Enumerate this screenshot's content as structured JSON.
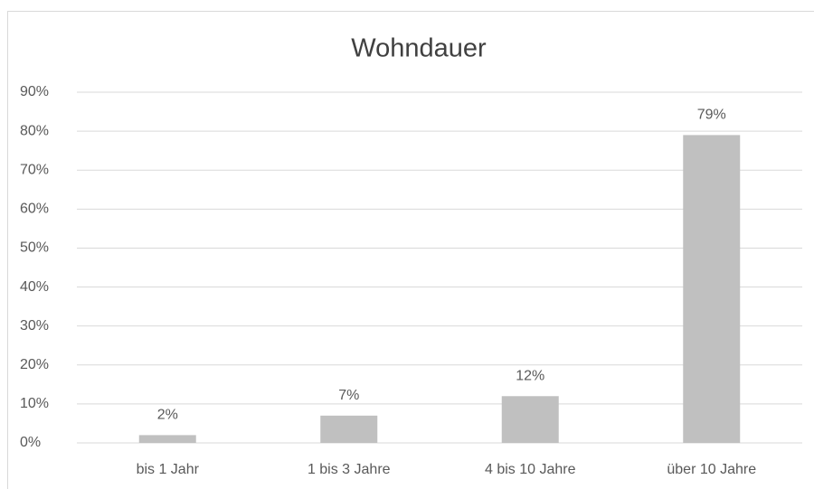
{
  "chart_data": {
    "type": "bar",
    "title": "Wohndauer",
    "categories": [
      "bis 1 Jahr",
      "1 bis 3 Jahre",
      "4 bis 10 Jahre",
      "über 10 Jahre"
    ],
    "values": [
      2,
      7,
      12,
      79
    ],
    "value_labels": [
      "2%",
      "7%",
      "12%",
      "79%"
    ],
    "color": "#c0c0c0",
    "ylim": [
      0,
      90
    ],
    "yticks": [
      {
        "value": 0,
        "label": "0%"
      },
      {
        "value": 10,
        "label": "10%"
      },
      {
        "value": 20,
        "label": "20%"
      },
      {
        "value": 30,
        "label": "30%"
      },
      {
        "value": 40,
        "label": "40%"
      },
      {
        "value": 50,
        "label": "50%"
      },
      {
        "value": 60,
        "label": "60%"
      },
      {
        "value": 70,
        "label": "70%"
      },
      {
        "value": 80,
        "label": "80%"
      },
      {
        "value": 90,
        "label": "90%"
      }
    ],
    "grid": true
  }
}
